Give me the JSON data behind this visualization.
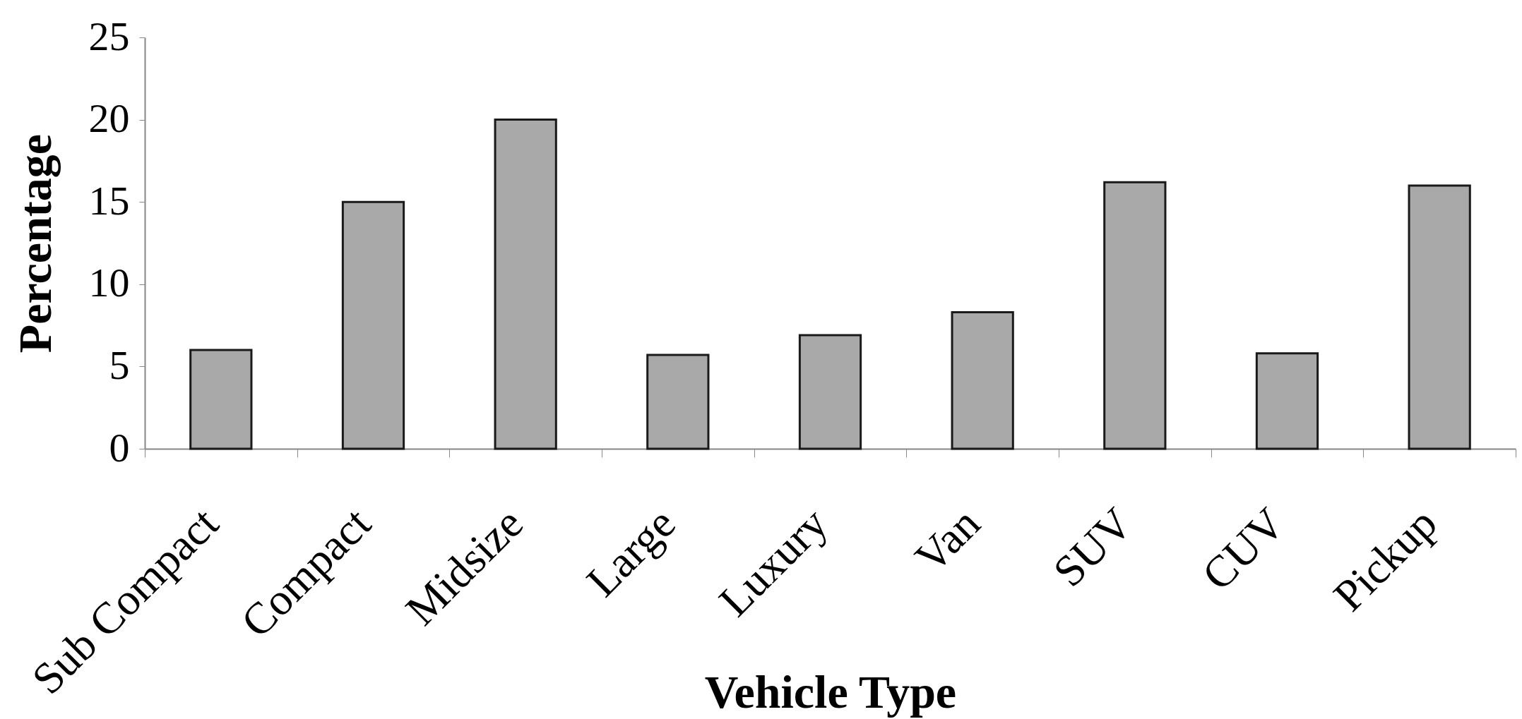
{
  "chart_data": {
    "type": "bar",
    "xlabel": "Vehicle Type",
    "ylabel": "Percentage",
    "categories": [
      "Sub Compact",
      "Compact",
      "Midsize",
      "Large",
      "Luxury",
      "Van",
      "SUV",
      "CUV",
      "Pickup"
    ],
    "values": [
      6.0,
      15.0,
      20.0,
      5.7,
      6.9,
      8.3,
      16.2,
      5.8,
      16.0
    ],
    "color": "#a9a9a9",
    "ylim": [
      0,
      25
    ],
    "yticks": [
      0,
      5,
      10,
      15,
      20,
      25
    ]
  }
}
